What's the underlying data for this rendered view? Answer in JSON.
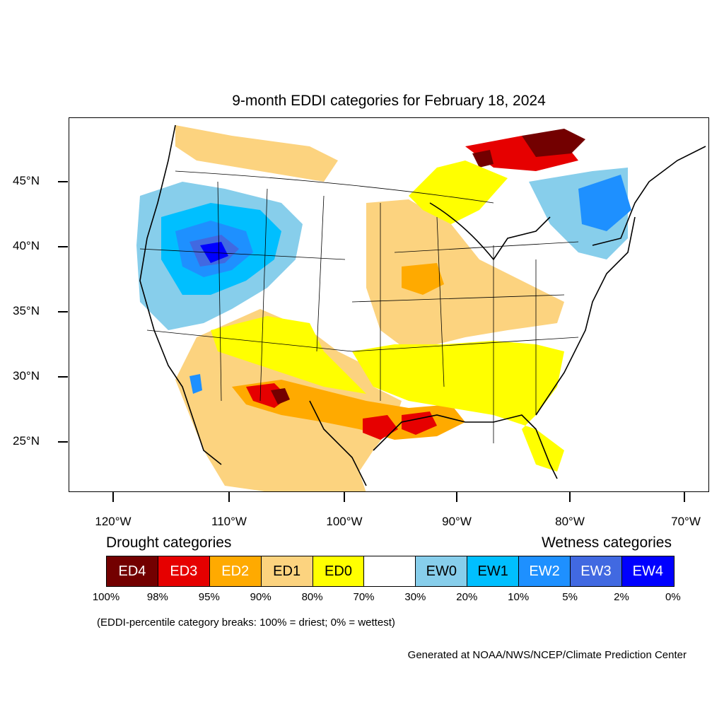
{
  "title": "9-month EDDI categories for February 18, 2024",
  "lat_labels": [
    "45°N",
    "40°N",
    "35°N",
    "30°N",
    "25°N"
  ],
  "lon_labels": [
    "120°W",
    "110°W",
    "100°W",
    "90°W",
    "80°W",
    "70°W"
  ],
  "legend": {
    "drought_heading": "Drought categories",
    "wetness_heading": "Wetness categories",
    "categories": [
      {
        "label": "ED4",
        "color": "#730000",
        "text_color": "#ffffff"
      },
      {
        "label": "ED3",
        "color": "#e60000",
        "text_color": "#ffffff"
      },
      {
        "label": "ED2",
        "color": "#ffaa00",
        "text_color": "#ffffff"
      },
      {
        "label": "ED1",
        "color": "#fcd37f",
        "text_color": "#000000"
      },
      {
        "label": "ED0",
        "color": "#ffff00",
        "text_color": "#000000"
      },
      {
        "label": "",
        "color": "#ffffff",
        "text_color": "#000000"
      },
      {
        "label": "EW0",
        "color": "#87ceeb",
        "text_color": "#000000"
      },
      {
        "label": "EW1",
        "color": "#00bfff",
        "text_color": "#000000"
      },
      {
        "label": "EW2",
        "color": "#1e90ff",
        "text_color": "#ffffff"
      },
      {
        "label": "EW3",
        "color": "#4169e1",
        "text_color": "#ffffff"
      },
      {
        "label": "EW4",
        "color": "#0000ff",
        "text_color": "#ffffff"
      }
    ],
    "percent_breaks": [
      "100%",
      "98%",
      "95%",
      "90%",
      "80%",
      "70%",
      "30%",
      "20%",
      "10%",
      "5%",
      "2%",
      "0%"
    ]
  },
  "note": "(EDDI-percentile category breaks: 100% = driest; 0% = wettest)",
  "credit": "Generated at NOAA/NWS/NCEP/Climate Prediction Center"
}
